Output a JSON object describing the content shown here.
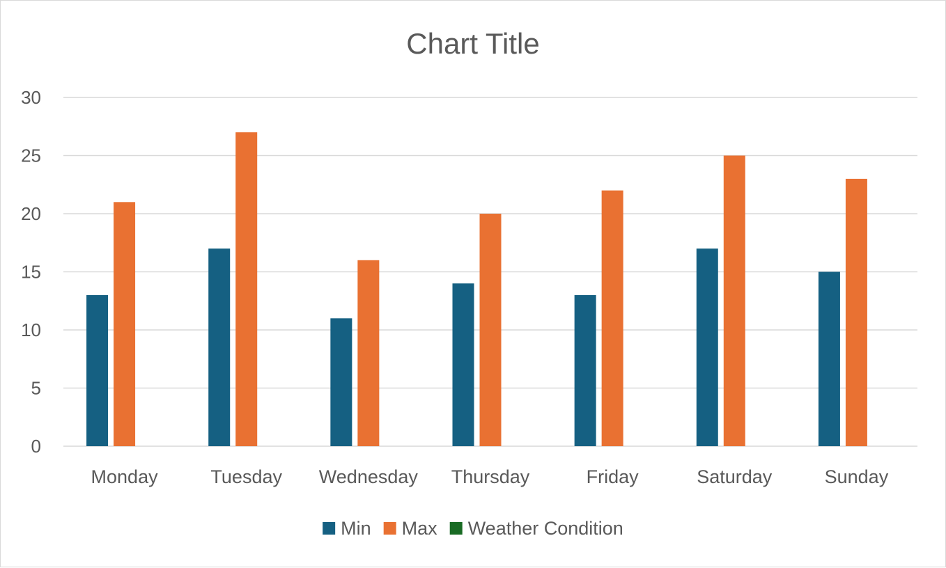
{
  "chart_data": {
    "type": "bar",
    "title": "Chart Title",
    "xlabel": "",
    "ylabel": "",
    "categories": [
      "Monday",
      "Tuesday",
      "Wednesday",
      "Thursday",
      "Friday",
      "Saturday",
      "Sunday"
    ],
    "series": [
      {
        "name": "Min",
        "color": "#156082",
        "values": [
          13,
          17,
          11,
          14,
          13,
          17,
          15
        ]
      },
      {
        "name": "Max",
        "color": "#e97132",
        "values": [
          21,
          27,
          16,
          20,
          22,
          25,
          23
        ]
      },
      {
        "name": "Weather Condition",
        "color": "#196b24",
        "values": [
          0,
          0,
          0,
          0,
          0,
          0,
          0
        ]
      }
    ],
    "ylim": [
      0,
      30
    ],
    "yticks": [
      0,
      5,
      10,
      15,
      20,
      25,
      30
    ],
    "grid": true,
    "legend_position": "bottom",
    "gridline_color": "#d9d9d9",
    "text_color": "#595959"
  }
}
